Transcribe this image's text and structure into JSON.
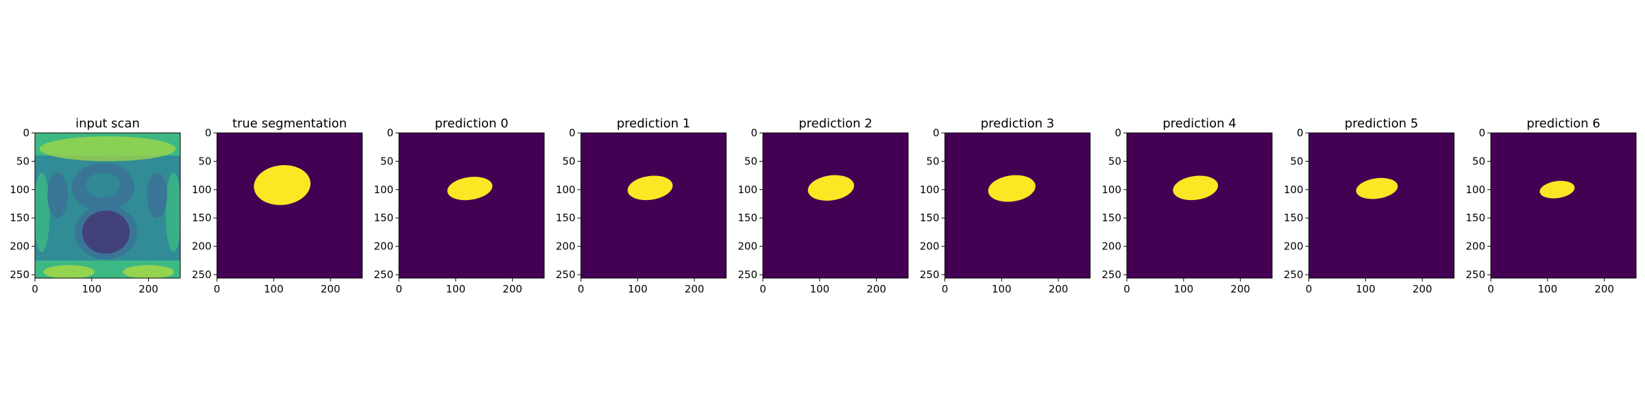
{
  "figure": {
    "colormap": "viridis",
    "mask_background_color": "#440154",
    "mask_foreground_color": "#fde725",
    "scan_colors": {
      "dark": "#3b2a6d",
      "mid_dark": "#31688e",
      "mid": "#26828e",
      "light": "#35b779",
      "bright": "#b5de2b"
    },
    "x_ticks": [
      0,
      100,
      200
    ],
    "y_ticks": [
      0,
      50,
      100,
      150,
      200,
      250
    ],
    "axis_range": [
      0,
      256
    ],
    "panels": [
      {
        "id": "input-scan",
        "title": "input scan",
        "kind": "scan"
      },
      {
        "id": "true-segmentation",
        "title": "true segmentation",
        "kind": "mask",
        "mask": {
          "cx": 115,
          "cy": 92,
          "rx": 50,
          "ry": 35,
          "rot": -6
        }
      },
      {
        "id": "prediction-0",
        "title": "prediction 0",
        "kind": "mask",
        "mask": {
          "cx": 125,
          "cy": 98,
          "rx": 40,
          "ry": 20,
          "rot": -8
        }
      },
      {
        "id": "prediction-1",
        "title": "prediction 1",
        "kind": "mask",
        "mask": {
          "cx": 122,
          "cy": 97,
          "rx": 40,
          "ry": 21,
          "rot": -8
        }
      },
      {
        "id": "prediction-2",
        "title": "prediction 2",
        "kind": "mask",
        "mask": {
          "cx": 120,
          "cy": 97,
          "rx": 41,
          "ry": 22,
          "rot": -8
        }
      },
      {
        "id": "prediction-3",
        "title": "prediction 3",
        "kind": "mask",
        "mask": {
          "cx": 118,
          "cy": 98,
          "rx": 42,
          "ry": 23,
          "rot": -8
        }
      },
      {
        "id": "prediction-4",
        "title": "prediction 4",
        "kind": "mask",
        "mask": {
          "cx": 121,
          "cy": 97,
          "rx": 40,
          "ry": 21,
          "rot": -8
        }
      },
      {
        "id": "prediction-5",
        "title": "prediction 5",
        "kind": "mask",
        "mask": {
          "cx": 120,
          "cy": 98,
          "rx": 37,
          "ry": 18,
          "rot": -8
        }
      },
      {
        "id": "prediction-6",
        "title": "prediction 6",
        "kind": "mask",
        "mask": {
          "cx": 117,
          "cy": 100,
          "rx": 31,
          "ry": 15,
          "rot": -8
        }
      }
    ]
  }
}
